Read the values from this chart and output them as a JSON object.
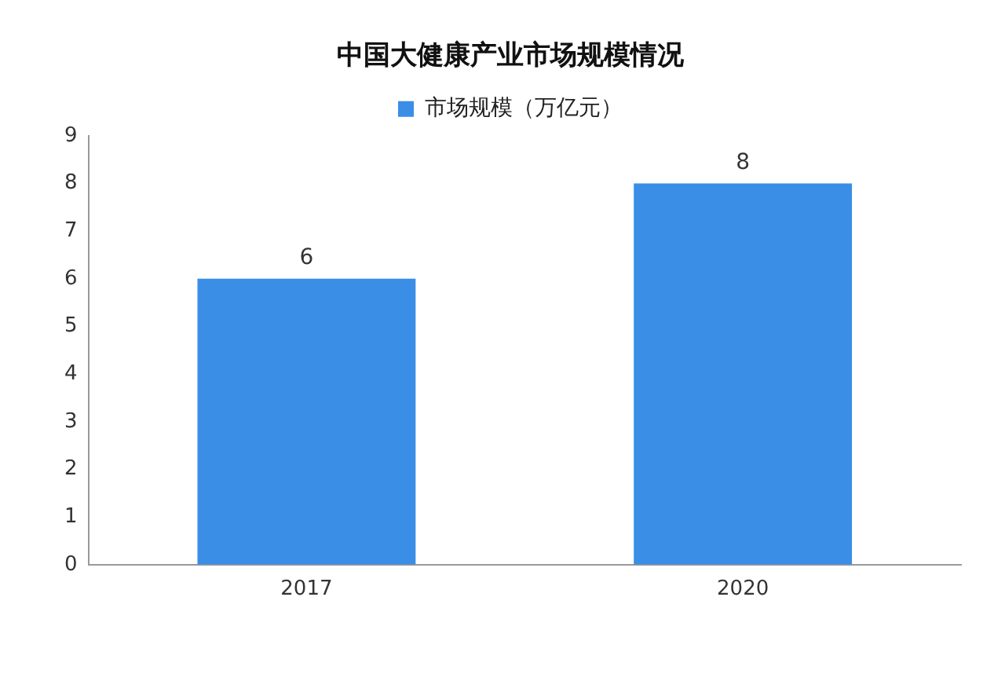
{
  "chart_data": {
    "type": "bar",
    "title": "中国大健康产业市场规模情况",
    "categories": [
      "2017",
      "2020"
    ],
    "series": [
      {
        "name": "市场规模（万亿元）",
        "color": "#3a8ee6",
        "values": [
          6,
          8
        ]
      }
    ],
    "ylim": [
      0,
      9
    ],
    "yticks": [
      0,
      1,
      2,
      3,
      4,
      5,
      6,
      7,
      8,
      9
    ],
    "grid": false,
    "legend": "top",
    "data_labels": true
  }
}
